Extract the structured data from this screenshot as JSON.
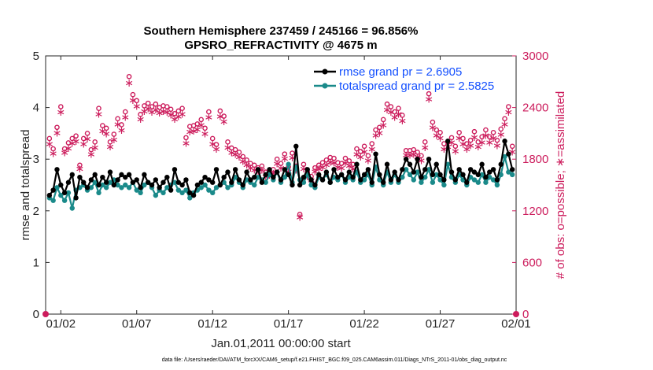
{
  "chart_data": {
    "type": "line",
    "title": "Southern Hemisphere 237459 / 245166 = 96.856%",
    "subtitle": "GPSRO_REFRACTIVITY @ 4675 m",
    "xlabel": "Jan.01,2011 00:00:00 start",
    "ylabel": "rmse and totalspread",
    "ylabel_right": "# of obs: o=possible; ∗=assimilated",
    "footer": "data file: /Users/raeder/DAI/ATM_forcXX/CAM6_setup/f.e21.FHIST_BGC.f09_025.CAM6assim.011/Diags_NTrS_2011-01/obs_diag_output.nc",
    "x_ticks": [
      "01/02",
      "01/07",
      "01/12",
      "01/17",
      "01/22",
      "01/27",
      "02/01"
    ],
    "x_tick_values": [
      1,
      6,
      11,
      16,
      21,
      26,
      31
    ],
    "xlim": [
      0,
      31
    ],
    "ylim": [
      0,
      5
    ],
    "yticks": [
      "0",
      "1",
      "2",
      "3",
      "4",
      "5"
    ],
    "ylim_right": [
      0,
      3000
    ],
    "yticks_right": [
      "0",
      "600",
      "1200",
      "1800",
      "2400",
      "3000"
    ],
    "legend": [
      "rmse grand pr = 2.6905",
      "totalspread grand pr = 2.5825"
    ],
    "x": [
      0.25,
      0.5,
      0.75,
      1,
      1.25,
      1.5,
      1.75,
      2,
      2.25,
      2.5,
      2.75,
      3,
      3.25,
      3.5,
      3.75,
      4,
      4.25,
      4.5,
      4.75,
      5,
      5.25,
      5.5,
      5.75,
      6,
      6.25,
      6.5,
      6.75,
      7,
      7.25,
      7.5,
      7.75,
      8,
      8.25,
      8.5,
      8.75,
      9,
      9.25,
      9.5,
      9.75,
      10,
      10.25,
      10.5,
      10.75,
      11,
      11.25,
      11.5,
      11.75,
      12,
      12.25,
      12.5,
      12.75,
      13,
      13.25,
      13.5,
      13.75,
      14,
      14.25,
      14.5,
      14.75,
      15,
      15.25,
      15.5,
      15.75,
      16,
      16.25,
      16.5,
      16.75,
      17,
      17.25,
      17.5,
      17.75,
      18,
      18.25,
      18.5,
      18.75,
      19,
      19.25,
      19.5,
      19.75,
      20,
      20.25,
      20.5,
      20.75,
      21,
      21.25,
      21.5,
      21.75,
      22,
      22.25,
      22.5,
      22.75,
      23,
      23.25,
      23.5,
      23.75,
      24,
      24.25,
      24.5,
      24.75,
      25,
      25.25,
      25.5,
      25.75,
      26,
      26.25,
      26.5,
      26.75,
      27,
      27.25,
      27.5,
      27.75,
      28,
      28.25,
      28.5,
      28.75,
      29,
      29.25,
      29.5,
      29.75,
      30,
      30.25,
      30.5,
      30.75
    ],
    "series": [
      {
        "name": "rmse",
        "color": "#000000",
        "axis": "left",
        "values": [
          2.3,
          2.4,
          2.8,
          2.5,
          2.35,
          2.55,
          2.7,
          2.25,
          2.65,
          2.55,
          2.45,
          2.6,
          2.7,
          2.5,
          2.65,
          2.55,
          2.75,
          2.5,
          2.6,
          2.7,
          2.65,
          2.7,
          2.55,
          2.6,
          2.45,
          2.7,
          2.55,
          2.5,
          2.6,
          2.45,
          2.55,
          2.65,
          2.4,
          2.8,
          2.55,
          2.5,
          2.6,
          2.35,
          2.3,
          2.5,
          2.55,
          2.65,
          2.6,
          2.55,
          2.8,
          2.5,
          2.65,
          2.75,
          2.55,
          2.8,
          2.6,
          2.5,
          2.75,
          2.6,
          2.65,
          2.8,
          2.55,
          2.7,
          2.8,
          2.65,
          2.75,
          2.6,
          2.8,
          2.7,
          2.5,
          3.25,
          2.5,
          2.65,
          2.8,
          2.6,
          2.5,
          2.7,
          2.6,
          2.75,
          2.55,
          2.8,
          2.65,
          2.7,
          2.6,
          2.75,
          2.65,
          2.9,
          2.6,
          2.7,
          2.8,
          2.55,
          3.1,
          2.7,
          2.55,
          2.9,
          2.6,
          2.75,
          2.6,
          2.8,
          3.0,
          2.9,
          2.75,
          3.0,
          2.65,
          2.8,
          3.0,
          2.7,
          2.9,
          2.7,
          2.6,
          3.35,
          2.75,
          2.6,
          2.8,
          2.7,
          2.55,
          2.8,
          2.75,
          2.7,
          2.9,
          2.65,
          2.75,
          2.8,
          2.6,
          2.9,
          3.35,
          3.1,
          2.8
        ]
      },
      {
        "name": "totalspread",
        "color": "#1a8a8a",
        "axis": "left",
        "values": [
          2.25,
          2.2,
          2.45,
          2.3,
          2.2,
          2.35,
          2.05,
          2.4,
          2.45,
          2.5,
          2.4,
          2.45,
          2.55,
          2.35,
          2.5,
          2.45,
          2.55,
          2.6,
          2.5,
          2.45,
          2.5,
          2.45,
          2.55,
          2.4,
          2.35,
          2.5,
          2.55,
          2.45,
          2.3,
          2.4,
          2.35,
          2.45,
          2.5,
          2.55,
          2.4,
          2.35,
          2.4,
          2.25,
          2.35,
          2.4,
          2.45,
          2.5,
          2.4,
          2.35,
          2.45,
          2.5,
          2.55,
          2.45,
          2.5,
          2.65,
          2.55,
          2.45,
          2.6,
          2.55,
          2.5,
          2.65,
          2.6,
          2.55,
          2.7,
          2.6,
          2.75,
          2.55,
          2.65,
          2.9,
          2.55,
          2.85,
          2.6,
          2.55,
          2.7,
          2.5,
          2.45,
          2.65,
          2.6,
          2.7,
          2.55,
          2.65,
          2.6,
          2.7,
          2.55,
          2.65,
          2.6,
          2.75,
          2.55,
          2.6,
          2.7,
          2.5,
          2.85,
          2.6,
          2.5,
          2.75,
          2.55,
          2.7,
          2.55,
          2.65,
          2.8,
          2.7,
          2.6,
          2.75,
          2.55,
          2.65,
          2.8,
          2.55,
          2.7,
          2.6,
          2.5,
          2.9,
          2.65,
          2.55,
          2.7,
          2.6,
          2.5,
          2.65,
          2.6,
          2.55,
          2.7,
          2.55,
          2.65,
          2.6,
          2.5,
          2.7,
          3.05,
          2.75,
          2.7
        ]
      },
      {
        "name": "possible",
        "color": "#cc1c5c",
        "axis": "right",
        "marker": "o",
        "values": [
          2040,
          1920,
          2170,
          2410,
          1920,
          1990,
          2040,
          2070,
          1730,
          2040,
          2100,
          1910,
          2000,
          2390,
          2190,
          2160,
          2000,
          2090,
          2270,
          2200,
          2350,
          2760,
          2550,
          2480,
          2320,
          2420,
          2450,
          2410,
          2440,
          2400,
          2420,
          2410,
          2380,
          2330,
          2360,
          2390,
          2050,
          2180,
          2190,
          2210,
          2260,
          2160,
          2350,
          2040,
          1970,
          2360,
          2300,
          2000,
          1930,
          1910,
          1880,
          1830,
          1790,
          1750,
          1730,
          1700,
          1720,
          1650,
          1660,
          1680,
          1800,
          1750,
          1860,
          1710,
          1870,
          1720,
          1160,
          1740,
          1650,
          1600,
          1700,
          1730,
          1760,
          1790,
          1820,
          1810,
          1760,
          1750,
          1810,
          1780,
          1740,
          1920,
          1890,
          1950,
          1840,
          1980,
          2140,
          2170,
          2260,
          2440,
          2410,
          2350,
          2390,
          2310,
          1900,
          1900,
          1910,
          1880,
          1840,
          2000,
          2560,
          2230,
          2140,
          2110,
          1980,
          2000,
          2050,
          1950,
          2110,
          2040,
          1980,
          2020,
          2120,
          2000,
          2060,
          2140,
          2060,
          2110,
          2020,
          2150,
          2270,
          2410,
          1950
        ]
      },
      {
        "name": "assimilated",
        "color": "#cc1c5c",
        "axis": "right",
        "marker": "*",
        "values": [
          1980,
          1870,
          2110,
          2350,
          1880,
          1930,
          1990,
          2010,
          1690,
          1980,
          2040,
          1860,
          1940,
          2330,
          2130,
          2100,
          1950,
          2030,
          2210,
          2140,
          2290,
          2690,
          2490,
          2420,
          2270,
          2360,
          2390,
          2350,
          2380,
          2340,
          2360,
          2350,
          2320,
          2270,
          2300,
          2330,
          1990,
          2120,
          2130,
          2150,
          2200,
          2100,
          2290,
          1980,
          1920,
          2300,
          2240,
          1940,
          1880,
          1860,
          1830,
          1780,
          1740,
          1700,
          1680,
          1660,
          1680,
          1600,
          1620,
          1640,
          1750,
          1700,
          1810,
          1660,
          1820,
          1680,
          1130,
          1690,
          1600,
          1560,
          1660,
          1690,
          1710,
          1740,
          1770,
          1760,
          1710,
          1700,
          1760,
          1730,
          1690,
          1860,
          1830,
          1890,
          1790,
          1920,
          2080,
          2110,
          2200,
          2380,
          2350,
          2290,
          2330,
          2250,
          1850,
          1850,
          1860,
          1830,
          1790,
          1940,
          2500,
          2170,
          2080,
          2050,
          1920,
          1950,
          2000,
          1900,
          2050,
          1980,
          1920,
          1960,
          2060,
          1950,
          2000,
          2080,
          2000,
          2050,
          1960,
          2090,
          2210,
          2350,
          1890
        ]
      }
    ]
  }
}
